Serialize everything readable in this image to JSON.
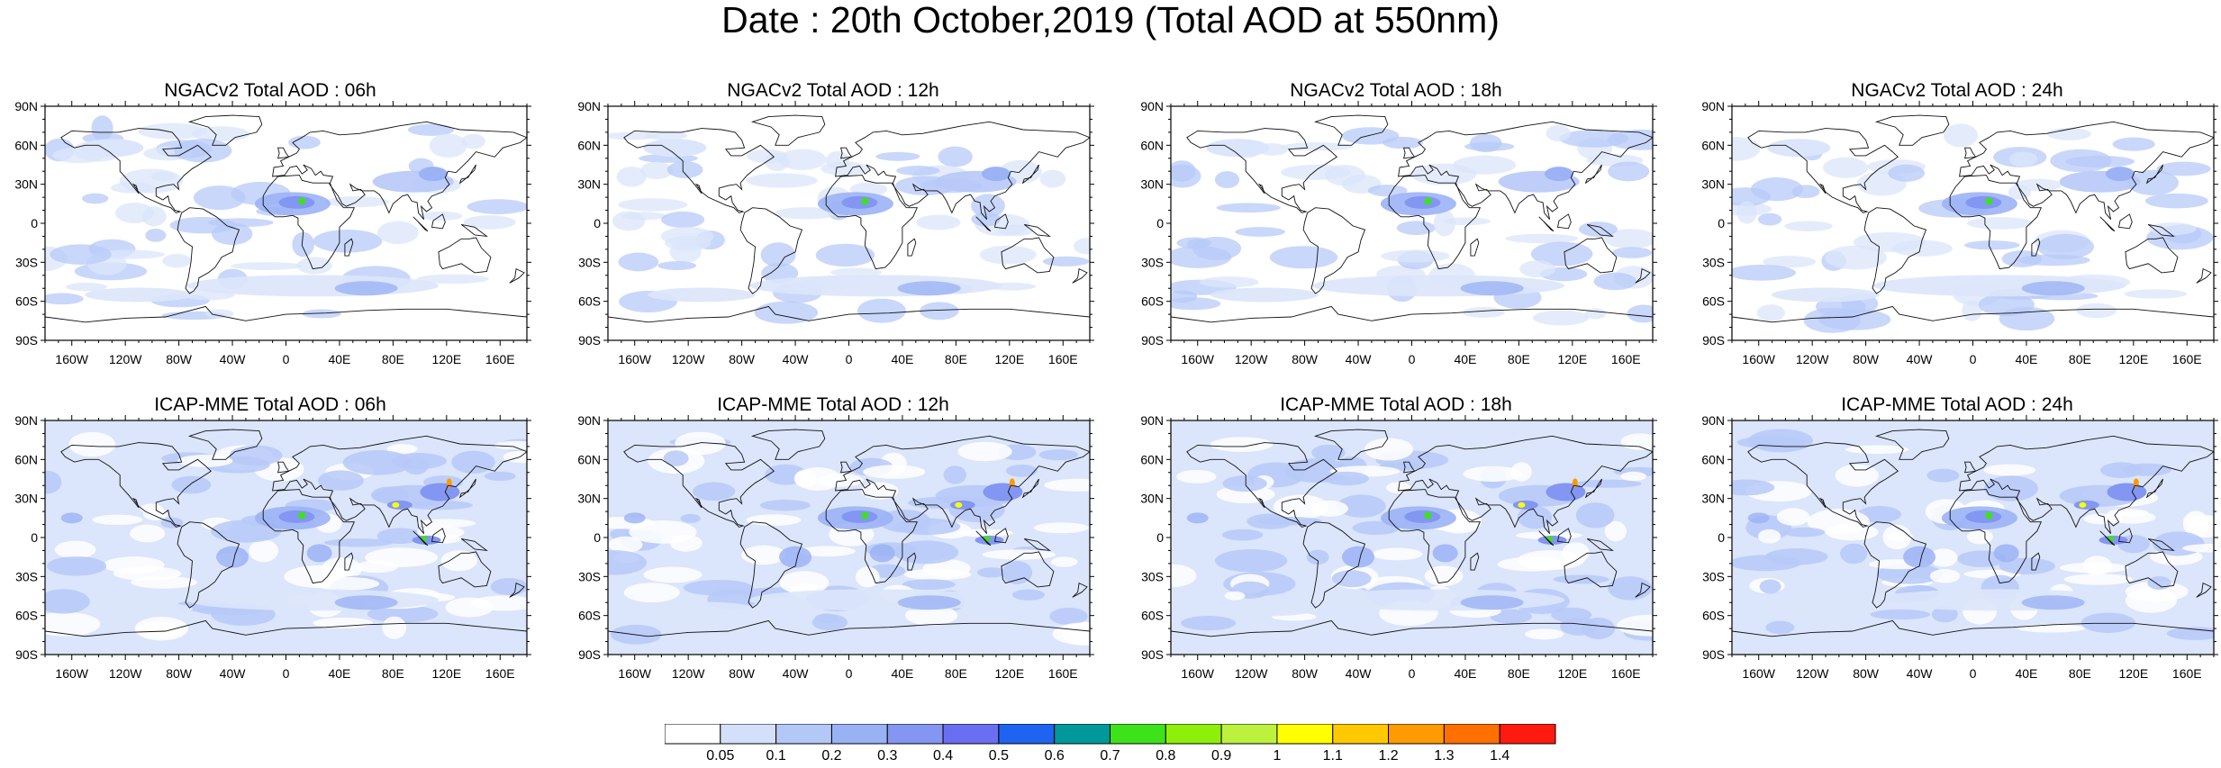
{
  "figure": {
    "title": "Date : 20th October,2019 (Total AOD at 550nm)"
  },
  "panels": [
    {
      "title": "NGACv2 Total AOD : 06h",
      "model": "NGACv2",
      "hour": "06h"
    },
    {
      "title": "NGACv2 Total AOD : 12h",
      "model": "NGACv2",
      "hour": "12h"
    },
    {
      "title": "NGACv2 Total AOD : 18h",
      "model": "NGACv2",
      "hour": "18h"
    },
    {
      "title": "NGACv2 Total AOD : 24h",
      "model": "NGACv2",
      "hour": "24h"
    },
    {
      "title": "ICAP-MME Total AOD : 06h",
      "model": "ICAP-MME",
      "hour": "06h"
    },
    {
      "title": "ICAP-MME Total AOD : 12h",
      "model": "ICAP-MME",
      "hour": "12h"
    },
    {
      "title": "ICAP-MME Total AOD : 18h",
      "model": "ICAP-MME",
      "hour": "18h"
    },
    {
      "title": "ICAP-MME Total AOD : 24h",
      "model": "ICAP-MME",
      "hour": "24h"
    }
  ],
  "axes": {
    "lat_ticks": [
      "90N",
      "60N",
      "30N",
      "0",
      "30S",
      "60S",
      "90S"
    ],
    "lon_ticks": [
      "160W",
      "120W",
      "80W",
      "40W",
      "0",
      "40E",
      "80E",
      "120E",
      "160E"
    ]
  },
  "colorbar": {
    "labels": [
      "0.05",
      "0.1",
      "0.2",
      "0.3",
      "0.4",
      "0.5",
      "0.6",
      "0.7",
      "0.8",
      "0.9",
      "1",
      "1.1",
      "1.2",
      "1.3",
      "1.4"
    ],
    "colors": [
      "#ffffff",
      "#d4e0fa",
      "#b4c8f8",
      "#98b2f5",
      "#8496f2",
      "#6a6ef0",
      "#1e64f0",
      "#00989a",
      "#3ee21a",
      "#8ef00a",
      "#bcf23e",
      "#ffff00",
      "#ffc800",
      "#ff9a00",
      "#ff7000",
      "#ff1a10"
    ]
  },
  "map_palette": {
    "background": "#ffffff",
    "light": "#dbe5fb",
    "medium": "#b7c9f8",
    "dark": "#9bb3f5",
    "darker": "#8296f2",
    "green": "#3ee21a",
    "yellow": "#ffff00",
    "orange": "#ff9a00",
    "coast": "#111111"
  }
}
